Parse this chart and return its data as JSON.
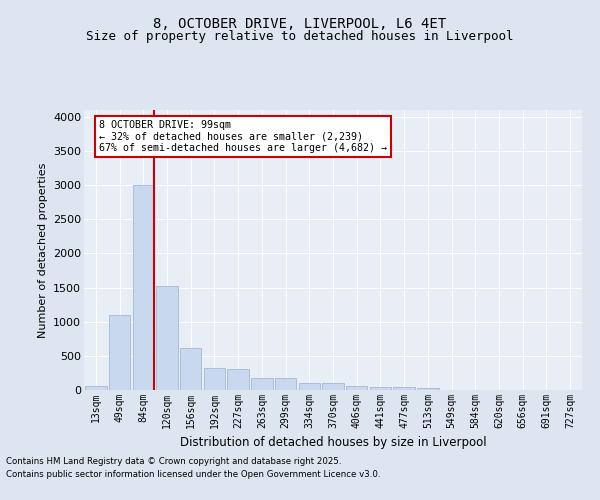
{
  "title_line1": "8, OCTOBER DRIVE, LIVERPOOL, L6 4ET",
  "title_line2": "Size of property relative to detached houses in Liverpool",
  "xlabel": "Distribution of detached houses by size in Liverpool",
  "ylabel": "Number of detached properties",
  "categories": [
    "13sqm",
    "49sqm",
    "84sqm",
    "120sqm",
    "156sqm",
    "192sqm",
    "227sqm",
    "263sqm",
    "299sqm",
    "334sqm",
    "370sqm",
    "406sqm",
    "441sqm",
    "477sqm",
    "513sqm",
    "549sqm",
    "584sqm",
    "620sqm",
    "656sqm",
    "691sqm",
    "727sqm"
  ],
  "values": [
    60,
    1100,
    3000,
    1530,
    620,
    315,
    305,
    175,
    170,
    100,
    100,
    55,
    40,
    40,
    35,
    0,
    0,
    0,
    0,
    0,
    0
  ],
  "bar_color": "#c8d8ee",
  "bar_edge_color": "#9ab0cc",
  "vline_color": "#cc0000",
  "vline_x_index": 2,
  "annotation_text": "8 OCTOBER DRIVE: 99sqm\n← 32% of detached houses are smaller (2,239)\n67% of semi-detached houses are larger (4,682) →",
  "annotation_box_facecolor": "#ffffff",
  "annotation_box_edgecolor": "#cc0000",
  "ylim": [
    0,
    4100
  ],
  "yticks": [
    0,
    500,
    1000,
    1500,
    2000,
    2500,
    3000,
    3500,
    4000
  ],
  "bg_color": "#dde6f0",
  "plot_bg_color": "#e8eef5",
  "grid_color": "#ffffff",
  "title1_fontsize": 10,
  "title2_fontsize": 9,
  "footer_line1": "Contains HM Land Registry data © Crown copyright and database right 2025.",
  "footer_line2": "Contains public sector information licensed under the Open Government Licence v3.0."
}
